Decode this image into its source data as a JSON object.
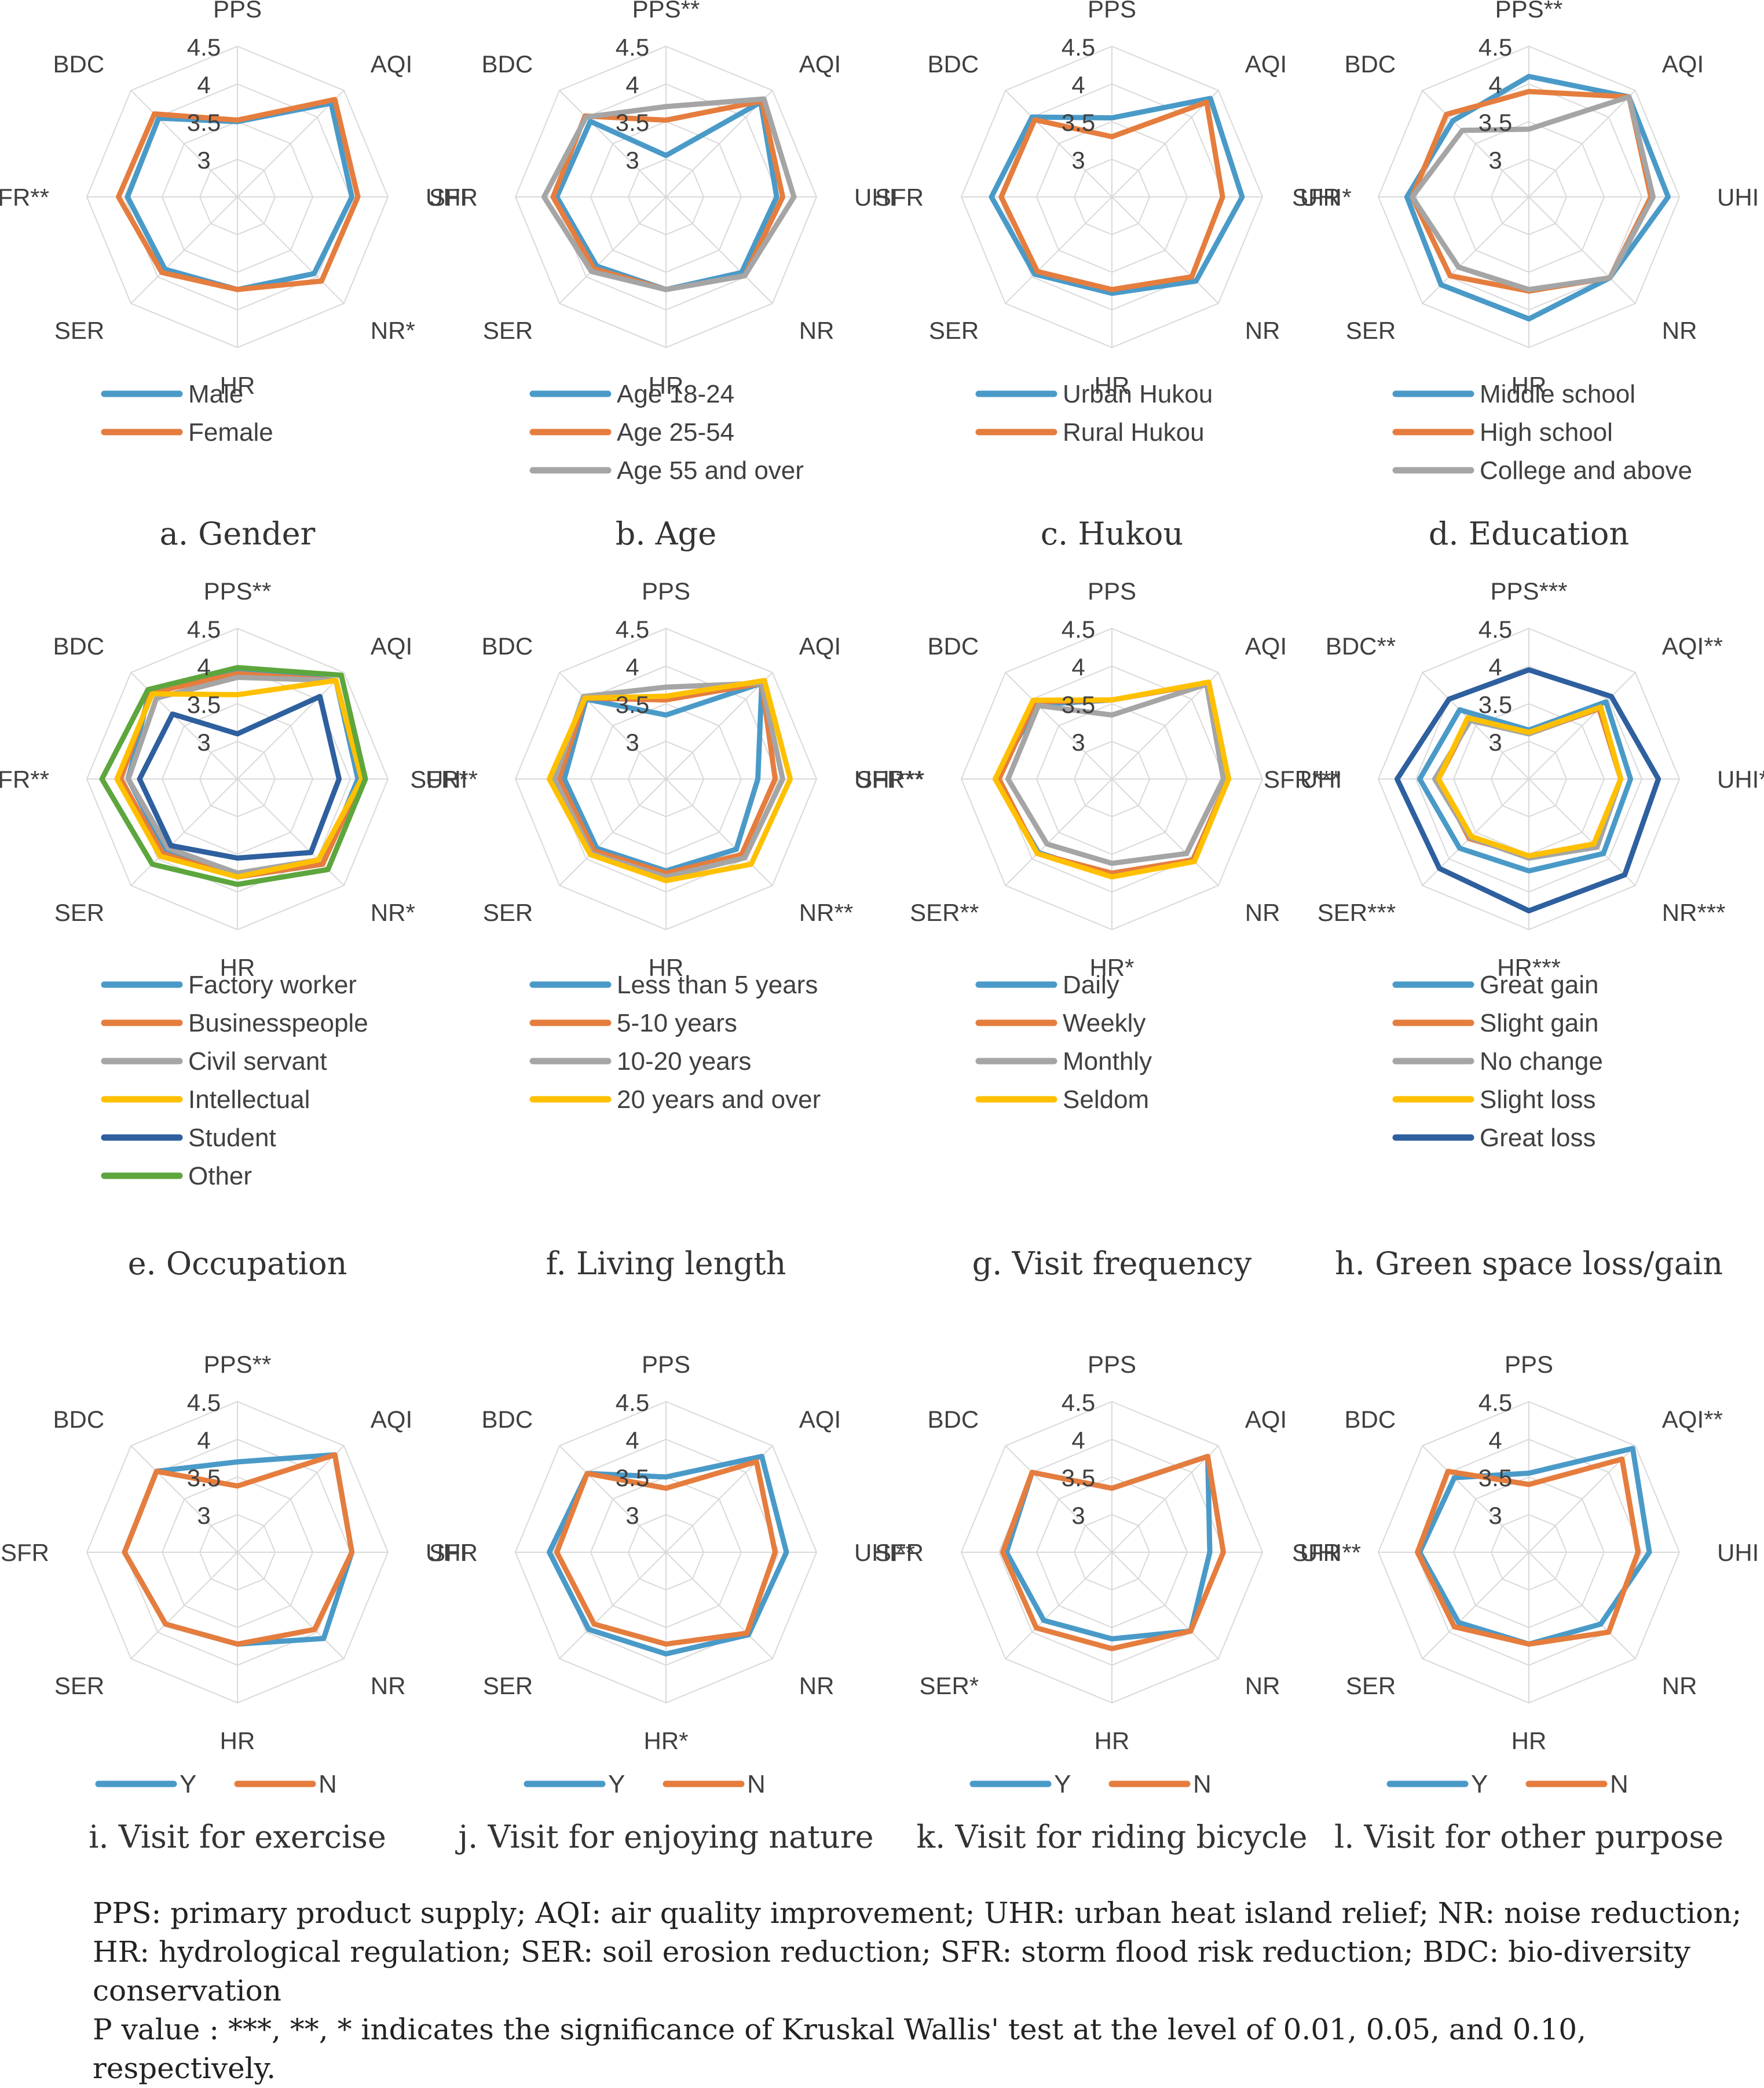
{
  "figure": {
    "footnote_lines": [
      "PPS: primary product supply; AQI: air quality improvement; UHR: urban heat island relief; NR: noise reduction;",
      "HR: hydrological regulation; SER: soil erosion reduction; SFR: storm flood risk reduction; BDC: bio-diversity",
      "conservation",
      "P value : ***, **, * indicates the significance of Kruskal Wallis' test at the level of 0.01, 0.05, and 0.10, respectively."
    ]
  },
  "chart_data": [
    {
      "type": "radar",
      "title": "a. Gender",
      "rlim": [
        2.5,
        4.5
      ],
      "ticks": [
        3,
        3.5,
        4,
        4.5
      ],
      "axes": [
        "PPS",
        "AQI",
        "UHI",
        "NR*",
        "HR",
        "SER",
        "SFR**",
        "BDC"
      ],
      "series": [
        {
          "name": "Male",
          "color": "#4a9ac8",
          "values": [
            3.5,
            4.26,
            4.02,
            3.94,
            3.73,
            3.86,
            3.96,
            3.98
          ]
        },
        {
          "name": "Female",
          "color": "#e57d3e",
          "values": [
            3.52,
            4.33,
            4.1,
            4.08,
            3.73,
            3.92,
            4.08,
            4.06
          ]
        }
      ]
    },
    {
      "type": "radar",
      "title": "b. Age",
      "rlim": [
        2.5,
        4.5
      ],
      "ticks": [
        3,
        3.5,
        4,
        4.5
      ],
      "axes": [
        "PPS**",
        "AQI",
        "UHI",
        "NR",
        "HR",
        "SER",
        "SFR",
        "BDC"
      ],
      "series": [
        {
          "name": "Age 18-24",
          "color": "#4a9ac8",
          "values": [
            3.05,
            4.28,
            3.97,
            3.92,
            3.73,
            3.8,
            3.95,
            3.92
          ]
        },
        {
          "name": "Age 25-54",
          "color": "#e57d3e",
          "values": [
            3.52,
            4.3,
            4.05,
            3.98,
            3.73,
            3.85,
            4.0,
            4.02
          ]
        },
        {
          "name": "Age 55 and over",
          "color": "#a5a5a5",
          "values": [
            3.7,
            4.34,
            4.2,
            3.98,
            3.73,
            3.9,
            4.12,
            4.0
          ]
        }
      ]
    },
    {
      "type": "radar",
      "title": "c. Hukou",
      "rlim": [
        2.5,
        4.5
      ],
      "ticks": [
        3,
        3.5,
        4,
        4.5
      ],
      "axes": [
        "PPS",
        "AQI",
        "UHI*",
        "NR",
        "HR",
        "SER",
        "SFR",
        "BDC"
      ],
      "series": [
        {
          "name": "Urban Hukou",
          "color": "#4a9ac8",
          "values": [
            3.55,
            4.35,
            4.23,
            4.08,
            3.78,
            3.95,
            4.1,
            4.0
          ]
        },
        {
          "name": "Rural Hukou",
          "color": "#e57d3e",
          "values": [
            3.3,
            4.28,
            3.97,
            4.0,
            3.73,
            3.9,
            3.97,
            3.95
          ]
        }
      ]
    },
    {
      "type": "radar",
      "title": "d. Education",
      "rlim": [
        2.5,
        4.5
      ],
      "ticks": [
        3,
        3.5,
        4,
        4.5
      ],
      "axes": [
        "PPS**",
        "AQI",
        "UHI",
        "NR",
        "HR",
        "SER",
        "SFR",
        "BDC"
      ],
      "series": [
        {
          "name": "Middle school",
          "color": "#4a9ac8",
          "values": [
            4.1,
            4.38,
            4.35,
            4.02,
            4.12,
            4.15,
            4.12,
            3.93
          ]
        },
        {
          "name": "High school",
          "color": "#e57d3e",
          "values": [
            3.9,
            4.38,
            4.12,
            4.02,
            3.75,
            3.98,
            4.05,
            4.05
          ]
        },
        {
          "name": "College and above",
          "color": "#a5a5a5",
          "values": [
            3.4,
            4.38,
            4.15,
            4.02,
            3.73,
            3.82,
            4.05,
            3.75
          ]
        }
      ]
    },
    {
      "type": "radar",
      "title": "e. Occupation",
      "rlim": [
        2.5,
        4.5
      ],
      "ticks": [
        3,
        3.5,
        4,
        4.5
      ],
      "axes": [
        "PPS**",
        "AQI",
        "UHI",
        "NR*",
        "HR",
        "SER",
        "SFR**",
        "BDC"
      ],
      "series": [
        {
          "name": "Factory worker",
          "color": "#4a9ac8",
          "values": [
            3.95,
            4.35,
            4.1,
            4.1,
            3.8,
            3.85,
            3.95,
            4.15
          ]
        },
        {
          "name": "Businesspeople",
          "color": "#e57d3e",
          "values": [
            3.9,
            4.35,
            4.15,
            4.1,
            3.8,
            3.9,
            4.05,
            4.12
          ]
        },
        {
          "name": "Civil servant",
          "color": "#a5a5a5",
          "values": [
            3.85,
            4.35,
            4.15,
            4.02,
            3.75,
            3.8,
            3.95,
            4.02
          ]
        },
        {
          "name": "Intellectual",
          "color": "#ffc000",
          "values": [
            3.62,
            4.35,
            4.15,
            4.02,
            3.8,
            3.95,
            4.1,
            4.1
          ]
        },
        {
          "name": "Student",
          "color": "#2e5f9e",
          "values": [
            3.1,
            4.05,
            3.85,
            3.88,
            3.55,
            3.75,
            3.8,
            3.72
          ]
        },
        {
          "name": "Other",
          "color": "#5da63d",
          "values": [
            3.98,
            4.45,
            4.2,
            4.2,
            3.9,
            4.1,
            4.3,
            4.18
          ]
        }
      ]
    },
    {
      "type": "radar",
      "title": "f. Living length",
      "rlim": [
        2.5,
        4.5
      ],
      "ticks": [
        3,
        3.5,
        4,
        4.5
      ],
      "axes": [
        "PPS",
        "AQI",
        "UHI***",
        "NR**",
        "HR",
        "SER",
        "SFR**",
        "BDC"
      ],
      "series": [
        {
          "name": "Less than 5 years",
          "color": "#4a9ac8",
          "values": [
            3.35,
            4.3,
            3.72,
            3.82,
            3.72,
            3.8,
            3.85,
            4.0
          ]
        },
        {
          "name": "5-10 years",
          "color": "#e57d3e",
          "values": [
            3.55,
            4.3,
            3.95,
            3.92,
            3.75,
            3.85,
            3.92,
            4.02
          ]
        },
        {
          "name": "10-20 years",
          "color": "#a5a5a5",
          "values": [
            3.72,
            4.3,
            4.05,
            3.98,
            3.8,
            3.9,
            3.98,
            4.05
          ]
        },
        {
          "name": "20 years and over",
          "color": "#ffc000",
          "values": [
            3.6,
            4.35,
            4.15,
            4.1,
            3.85,
            3.92,
            4.05,
            4.02
          ]
        }
      ]
    },
    {
      "type": "radar",
      "title": "g. Visit frequency",
      "rlim": [
        2.5,
        4.5
      ],
      "ticks": [
        3,
        3.5,
        4,
        4.5
      ],
      "axes": [
        "PPS",
        "AQI",
        "UHI",
        "NR",
        "HR*",
        "SER**",
        "SFR**",
        "BDC"
      ],
      "series": [
        {
          "name": "Daily",
          "color": "#4a9ac8",
          "values": [
            3.55,
            4.3,
            4.05,
            4.02,
            3.8,
            3.88,
            4.05,
            3.9
          ]
        },
        {
          "name": "Weekly",
          "color": "#e57d3e",
          "values": [
            3.55,
            4.3,
            4.05,
            4.02,
            3.75,
            3.9,
            4.0,
            3.95
          ]
        },
        {
          "name": "Monthly",
          "color": "#a5a5a5",
          "values": [
            3.35,
            4.28,
            3.98,
            3.9,
            3.62,
            3.72,
            3.88,
            3.88
          ]
        },
        {
          "name": "Seldom",
          "color": "#ffc000",
          "values": [
            3.55,
            4.32,
            4.05,
            4.05,
            3.8,
            3.9,
            4.05,
            3.98
          ]
        }
      ]
    },
    {
      "type": "radar",
      "title": "h. Green space loss/gain",
      "rlim": [
        2.5,
        4.5
      ],
      "ticks": [
        3,
        3.5,
        4,
        4.5
      ],
      "axes": [
        "PPS***",
        "AQI**",
        "UHI***",
        "NR***",
        "HR***",
        "SER***",
        "SFR***",
        "BDC**"
      ],
      "series": [
        {
          "name": "Great gain",
          "color": "#4a9ac8",
          "values": [
            3.15,
            3.95,
            3.85,
            3.9,
            3.72,
            3.8,
            3.95,
            3.8
          ]
        },
        {
          "name": "Slight gain",
          "color": "#e57d3e",
          "values": [
            3.1,
            3.82,
            3.72,
            3.72,
            3.52,
            3.62,
            3.7,
            3.62
          ]
        },
        {
          "name": "No change",
          "color": "#a5a5a5",
          "values": [
            3.1,
            3.85,
            3.72,
            3.78,
            3.55,
            3.6,
            3.75,
            3.6
          ]
        },
        {
          "name": "Slight loss",
          "color": "#ffc000",
          "values": [
            3.12,
            3.85,
            3.72,
            3.72,
            3.52,
            3.58,
            3.7,
            3.65
          ]
        },
        {
          "name": "Great loss",
          "color": "#2e5f9e",
          "values": [
            3.95,
            4.05,
            4.22,
            4.3,
            4.25,
            4.18,
            4.25,
            4.0
          ]
        }
      ]
    },
    {
      "type": "radar",
      "title": "i. Visit for exercise",
      "rlim": [
        2.5,
        4.5
      ],
      "ticks": [
        3,
        3.5,
        4,
        4.5
      ],
      "axes": [
        "PPS**",
        "AQI",
        "UHI",
        "NR",
        "HR",
        "SER",
        "SFR",
        "BDC"
      ],
      "series": [
        {
          "name": "Y",
          "color": "#4a9ac8",
          "values": [
            3.7,
            4.33,
            4.02,
            4.12,
            3.72,
            3.85,
            4.0,
            4.02
          ]
        },
        {
          "name": "N",
          "color": "#e57d3e",
          "values": [
            3.38,
            4.33,
            4.02,
            3.95,
            3.72,
            3.85,
            4.0,
            4.02
          ]
        }
      ]
    },
    {
      "type": "radar",
      "title": "j. Visit for enjoying nature",
      "rlim": [
        2.5,
        4.5
      ],
      "ticks": [
        3,
        3.5,
        4,
        4.5
      ],
      "axes": [
        "PPS",
        "AQI",
        "UHI**",
        "NR",
        "HR*",
        "SER",
        "SFR",
        "BDC"
      ],
      "series": [
        {
          "name": "Y",
          "color": "#4a9ac8",
          "values": [
            3.5,
            4.3,
            4.1,
            4.05,
            3.85,
            3.95,
            4.05,
            3.98
          ]
        },
        {
          "name": "N",
          "color": "#e57d3e",
          "values": [
            3.35,
            4.2,
            3.95,
            4.02,
            3.72,
            3.85,
            3.95,
            3.98
          ]
        }
      ]
    },
    {
      "type": "radar",
      "title": "k. Visit for riding bicycle",
      "rlim": [
        2.5,
        4.5
      ],
      "ticks": [
        3,
        3.5,
        4,
        4.5
      ],
      "axes": [
        "PPS",
        "AQI",
        "UHI**",
        "NR",
        "HR",
        "SER*",
        "SFR",
        "BDC"
      ],
      "series": [
        {
          "name": "Y",
          "color": "#4a9ac8",
          "values": [
            3.35,
            4.3,
            3.8,
            3.98,
            3.65,
            3.78,
            3.9,
            4.0
          ]
        },
        {
          "name": "N",
          "color": "#e57d3e",
          "values": [
            3.35,
            4.3,
            3.98,
            3.98,
            3.78,
            3.92,
            3.95,
            4.0
          ]
        }
      ]
    },
    {
      "type": "radar",
      "title": "l. Visit for other purpose",
      "rlim": [
        2.5,
        4.5
      ],
      "ticks": [
        3,
        3.5,
        4,
        4.5
      ],
      "axes": [
        "PPS",
        "AQI**",
        "UHI",
        "NR",
        "HR",
        "SER",
        "SFR",
        "BDC"
      ],
      "series": [
        {
          "name": "Y",
          "color": "#4a9ac8",
          "values": [
            3.55,
            4.45,
            4.1,
            3.85,
            3.72,
            3.82,
            3.95,
            3.9
          ]
        },
        {
          "name": "N",
          "color": "#e57d3e",
          "values": [
            3.4,
            4.25,
            3.95,
            4.0,
            3.72,
            3.9,
            3.98,
            4.02
          ]
        }
      ]
    }
  ]
}
